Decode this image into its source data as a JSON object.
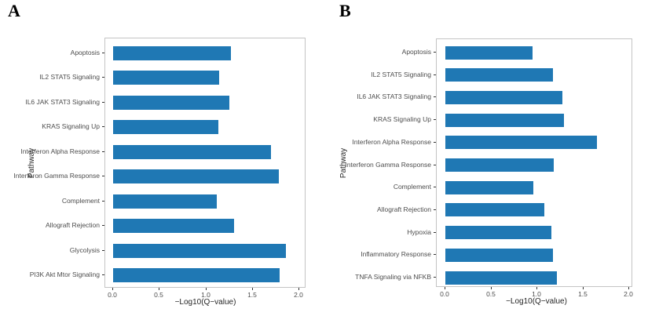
{
  "figure": {
    "background": "#ffffff"
  },
  "chart_data": [
    {
      "type": "bar",
      "orientation": "horizontal",
      "panel_label": "A",
      "ylabel": "Pathway",
      "xlabel": "−Log10(Q−value)",
      "categories": [
        "Apoptosis",
        "IL2 STAT5 Signaling",
        "IL6 JAK STAT3 Signaling",
        "KRAS Signaling Up",
        "Interferon Alpha Response",
        "Interferon Gamma Response",
        "Complement",
        "Allograft Rejection",
        "Glycolysis",
        "PI3K Akt Mtor Signaling"
      ],
      "values": [
        1.27,
        1.14,
        1.25,
        1.13,
        1.7,
        1.78,
        1.11,
        1.3,
        1.86,
        1.79
      ],
      "xticks": [
        0,
        0.5,
        1,
        1.5,
        2
      ],
      "xtick_labels": [
        "0.0",
        "0.5",
        "1.0",
        "1.5",
        "2.0"
      ],
      "xlim": [
        0,
        2.08
      ],
      "bar_color": "#1f78b4",
      "grid": false,
      "legend": "none"
    },
    {
      "type": "bar",
      "orientation": "horizontal",
      "panel_label": "B",
      "ylabel": "Pathway",
      "xlabel": "−Log10(Q−value)",
      "categories": [
        "Apoptosis",
        "IL2 STAT5 Signaling",
        "IL6 JAK STAT3 Signaling",
        "KRAS Signaling Up",
        "Interferon Alpha Response",
        "Interferon Gamma Response",
        "Complement",
        "Allograft Rejection",
        "Hypoxia",
        "Inflammatory Response",
        "TNFA Signaling via NFKB"
      ],
      "values": [
        0.95,
        1.17,
        1.27,
        1.29,
        1.65,
        1.18,
        0.96,
        1.08,
        1.15,
        1.17,
        1.21
      ],
      "xticks": [
        0,
        0.5,
        1,
        1.5,
        2
      ],
      "xtick_labels": [
        "0.0",
        "0.5",
        "1.0",
        "1.5",
        "2.0"
      ],
      "xlim": [
        0,
        2.08
      ],
      "bar_color": "#1f78b4",
      "grid": false,
      "legend": "none"
    }
  ]
}
